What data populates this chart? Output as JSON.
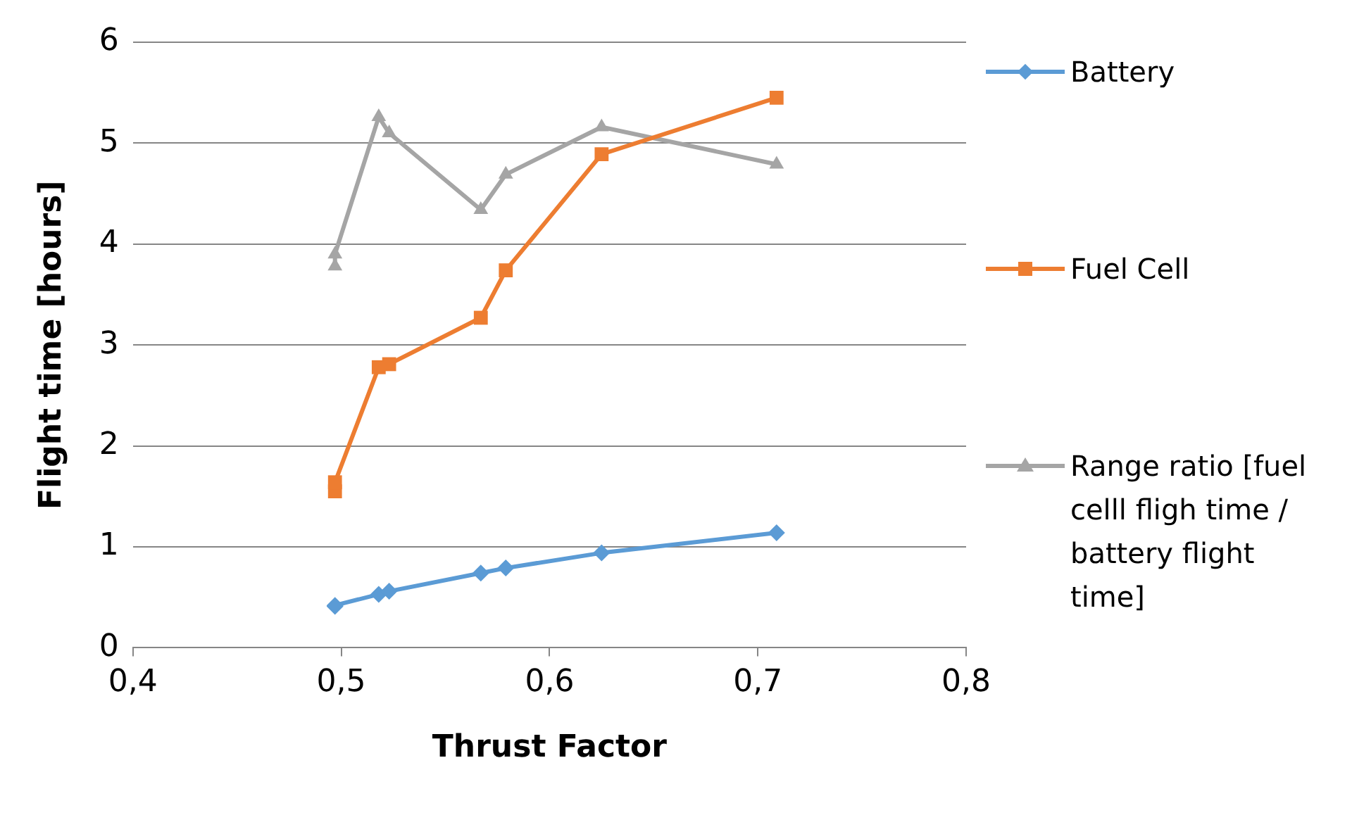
{
  "chart_data": {
    "type": "line",
    "xlabel": "Thrust Factor",
    "ylabel": "Flight time [hours]",
    "x": [
      0.497,
      0.497,
      0.518,
      0.523,
      0.567,
      0.579,
      0.625,
      0.709
    ],
    "series": [
      {
        "name": "Battery",
        "color": "#5b9bd5",
        "marker": "diamond",
        "values": [
          0.41,
          0.42,
          0.53,
          0.56,
          0.74,
          0.79,
          0.94,
          1.14
        ]
      },
      {
        "name": "Fuel Cell",
        "color": "#ed7d31",
        "marker": "square",
        "values": [
          1.55,
          1.64,
          2.78,
          2.81,
          3.27,
          3.74,
          4.89,
          5.45
        ]
      },
      {
        "name": "Range ratio [fuel celll fligh time / battery flight time]",
        "color": "#a5a5a5",
        "marker": "triangle",
        "values": [
          3.78,
          3.9,
          5.26,
          5.1,
          4.34,
          4.69,
          5.16,
          4.79
        ]
      }
    ],
    "xlim": [
      0.4,
      0.8
    ],
    "xticks": [
      {
        "value": 0.4,
        "label": "0,4"
      },
      {
        "value": 0.5,
        "label": "0,5"
      },
      {
        "value": 0.6,
        "label": "0,6"
      },
      {
        "value": 0.7,
        "label": "0,7"
      },
      {
        "value": 0.8,
        "label": "0,8"
      }
    ],
    "ylim": [
      0,
      6
    ],
    "yticks": [
      0,
      1,
      2,
      3,
      4,
      5,
      6
    ],
    "grid": "y",
    "legend": "right",
    "line_style": "solid"
  }
}
